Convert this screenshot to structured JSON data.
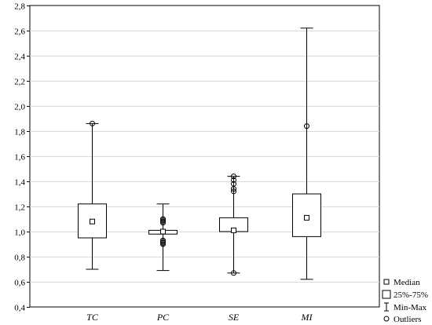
{
  "chart_data": {
    "type": "box",
    "title": "",
    "xlabel": "",
    "ylabel": "",
    "ylim": [
      0.4,
      2.8
    ],
    "yticks": [
      "0,4",
      "0,6",
      "0,8",
      "1,0",
      "1,2",
      "1,4",
      "1,6",
      "1,8",
      "2,0",
      "2,2",
      "2,4",
      "2,6",
      "2,8"
    ],
    "grid": true,
    "legend_position": "bottom-right",
    "categories": [
      "TC",
      "PC",
      "SE",
      "MI"
    ],
    "boxes": [
      {
        "name": "TC",
        "median": 1.08,
        "q1": 0.95,
        "q3": 1.22,
        "min": 0.7,
        "max": 1.86,
        "outliers": [
          1.86
        ]
      },
      {
        "name": "PC",
        "median": 1.0,
        "q1": 0.98,
        "q3": 1.01,
        "min": 0.69,
        "max": 1.22,
        "outliers": [
          1.1,
          1.09,
          1.08,
          1.07,
          0.93,
          0.92,
          0.91,
          0.9
        ]
      },
      {
        "name": "SE",
        "median": 1.01,
        "q1": 1.0,
        "q3": 1.11,
        "min": 0.67,
        "max": 1.44,
        "outliers": [
          1.44,
          1.41,
          1.38,
          1.34,
          1.32,
          0.67
        ]
      },
      {
        "name": "MI",
        "median": 1.11,
        "q1": 0.96,
        "q3": 1.3,
        "min": 0.62,
        "max": 2.62,
        "outliers": [
          1.84
        ]
      }
    ],
    "legend": [
      {
        "symbol": "median",
        "label": "Median"
      },
      {
        "symbol": "box",
        "label": "25%-75%"
      },
      {
        "symbol": "whisker",
        "label": "Min-Max"
      },
      {
        "symbol": "outlier",
        "label": "Outliers"
      }
    ]
  }
}
